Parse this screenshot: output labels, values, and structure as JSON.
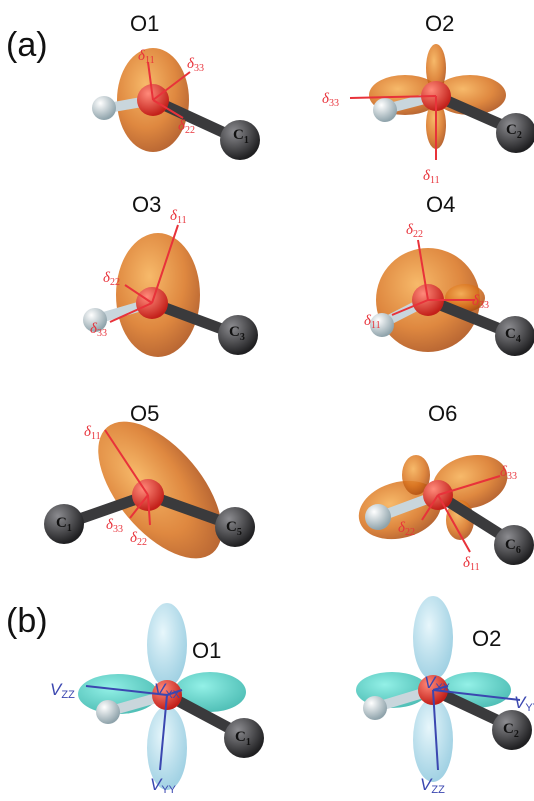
{
  "panel_labels": {
    "a": "(a)",
    "b": "(b)"
  },
  "colors": {
    "cs_lobe": "#d9731e",
    "cs_axis": "#e8323a",
    "efg_lobe": "#9fd4e8",
    "efg_lobe_alt": "#3fc9c0",
    "efg_axis": "#3b47b0",
    "oxygen": "#e2372e",
    "carbon": "#3a3a3c",
    "hydrogen": "#c9d6dc"
  },
  "panel_a": [
    {
      "site": "O1",
      "carbon": "C",
      "carbon_sub": "1",
      "d11": "δ",
      "d11_sub": "11",
      "d22": "δ",
      "d22_sub": "22",
      "d33": "δ",
      "d33_sub": "33"
    },
    {
      "site": "O2",
      "carbon": "C",
      "carbon_sub": "2",
      "d11": "δ",
      "d11_sub": "11",
      "d33": "δ",
      "d33_sub": "33"
    },
    {
      "site": "O3",
      "carbon": "C",
      "carbon_sub": "3",
      "d11": "δ",
      "d11_sub": "11",
      "d22": "δ",
      "d22_sub": "22",
      "d33": "δ",
      "d33_sub": "33"
    },
    {
      "site": "O4",
      "carbon": "C",
      "carbon_sub": "4",
      "d11": "δ",
      "d11_sub": "11",
      "d22": "δ",
      "d22_sub": "22",
      "d33": "δ",
      "d33_sub": "33"
    },
    {
      "site": "O5",
      "carbon_left": "C",
      "carbon_left_sub": "1",
      "carbon": "C",
      "carbon_sub": "5",
      "d11": "δ",
      "d11_sub": "11",
      "d22": "δ",
      "d22_sub": "22",
      "d33": "δ",
      "d33_sub": "33"
    },
    {
      "site": "O6",
      "carbon": "C",
      "carbon_sub": "6",
      "d11": "δ",
      "d11_sub": "11",
      "d22": "δ",
      "d22_sub": "22",
      "d33": "δ",
      "d33_sub": "33"
    }
  ],
  "panel_b": [
    {
      "site": "O1",
      "carbon": "C",
      "carbon_sub": "1",
      "vxx": "V",
      "vxx_sub": "XX",
      "vyy": "V",
      "vyy_sub": "YY",
      "vzz": "V",
      "vzz_sub": "ZZ"
    },
    {
      "site": "O2",
      "carbon": "C",
      "carbon_sub": "2",
      "vxx": "V",
      "vxx_sub": "XX",
      "vyy": "V",
      "vyy_sub": "YY",
      "vzz": "V",
      "vzz_sub": "ZZ"
    }
  ]
}
